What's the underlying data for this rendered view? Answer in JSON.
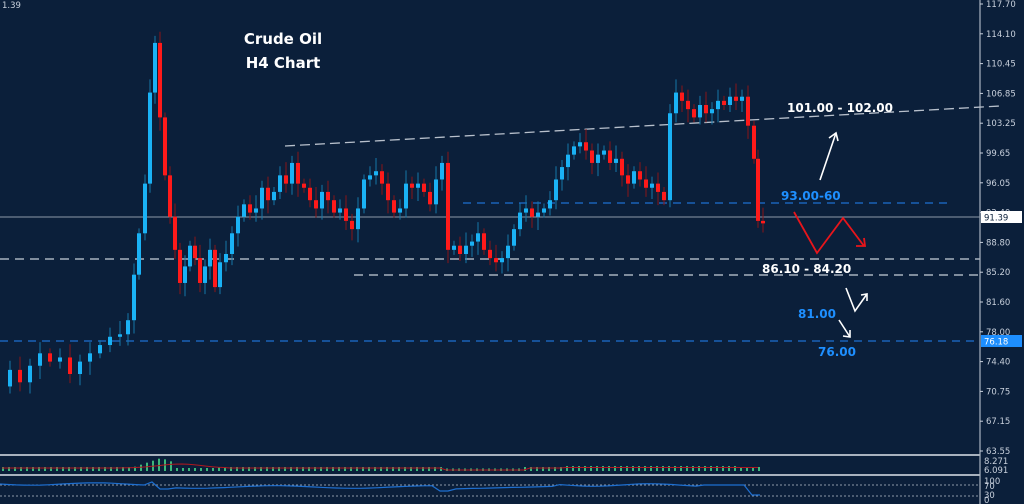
{
  "chart_data": {
    "type": "candlestick",
    "title": "Crude Oil",
    "subtitle": "H4 Chart",
    "top_left_value": "1.39",
    "y_axis": {
      "ticks": [
        "117.70",
        "114.10",
        "110.45",
        "106.85",
        "103.25",
        "99.65",
        "96.05",
        "92.40",
        "88.80",
        "85.20",
        "81.60",
        "78.00",
        "74.40",
        "70.75",
        "67.15",
        "63.55"
      ],
      "range": [
        62.5,
        118.5
      ]
    },
    "current_price": "91.39",
    "marked_price": "76.18",
    "annotations": [
      {
        "text": "101.00 - 102.00",
        "color": "#ffffff",
        "type": "resistance-trendline"
      },
      {
        "text": "93.00-60",
        "color": "#1e8fff",
        "type": "resistance-level"
      },
      {
        "text": "86.10 - 84.20",
        "color": "#ffffff",
        "type": "support-zone"
      },
      {
        "text": "81.00",
        "color": "#1e8fff",
        "type": "support-level"
      },
      {
        "text": "76.00",
        "color": "#1e8fff",
        "type": "support-level"
      }
    ],
    "levels": {
      "current": 91.39,
      "resistance_zone_blue": 93.0,
      "support_upper": 86.1,
      "support_lower": 84.2,
      "support_76": 76.18,
      "trendline_start": [
        285,
        100.0
      ],
      "trendline_end": [
        1000,
        104.8
      ]
    },
    "indicator_1": {
      "name": "histogram with signal line",
      "value_top": "8.271",
      "value_2": "6.091",
      "value_3": "2.009"
    },
    "indicator_2": {
      "name": "oscillator",
      "levels": [
        "100",
        "70",
        "30",
        "0"
      ]
    },
    "colors": {
      "background": "#0b1f3a",
      "bull": "#1ab2f5",
      "bear": "#ff1a1a",
      "grid_line": "#8c99a8",
      "blue_dash": "#1e6fd0"
    }
  },
  "header": {
    "top_left_value": "1.39"
  },
  "title": {
    "line1": "Crude Oil",
    "line2": "H4 Chart"
  },
  "labels": {
    "res_trend": "101.00 - 102.00",
    "res_blue": "93.00-60",
    "support_zone": "86.10 - 84.20",
    "level_81": "81.00",
    "level_76": "76.00",
    "price_tag": "91.39",
    "price_tag_76": "76.18",
    "ind1_v1": "8.271",
    "ind1_v2": "6.091",
    "ind1_v3": "2.009",
    "ind2_100": "100",
    "ind2_70": "70",
    "ind2_30": "30",
    "ind2_0": "0"
  }
}
